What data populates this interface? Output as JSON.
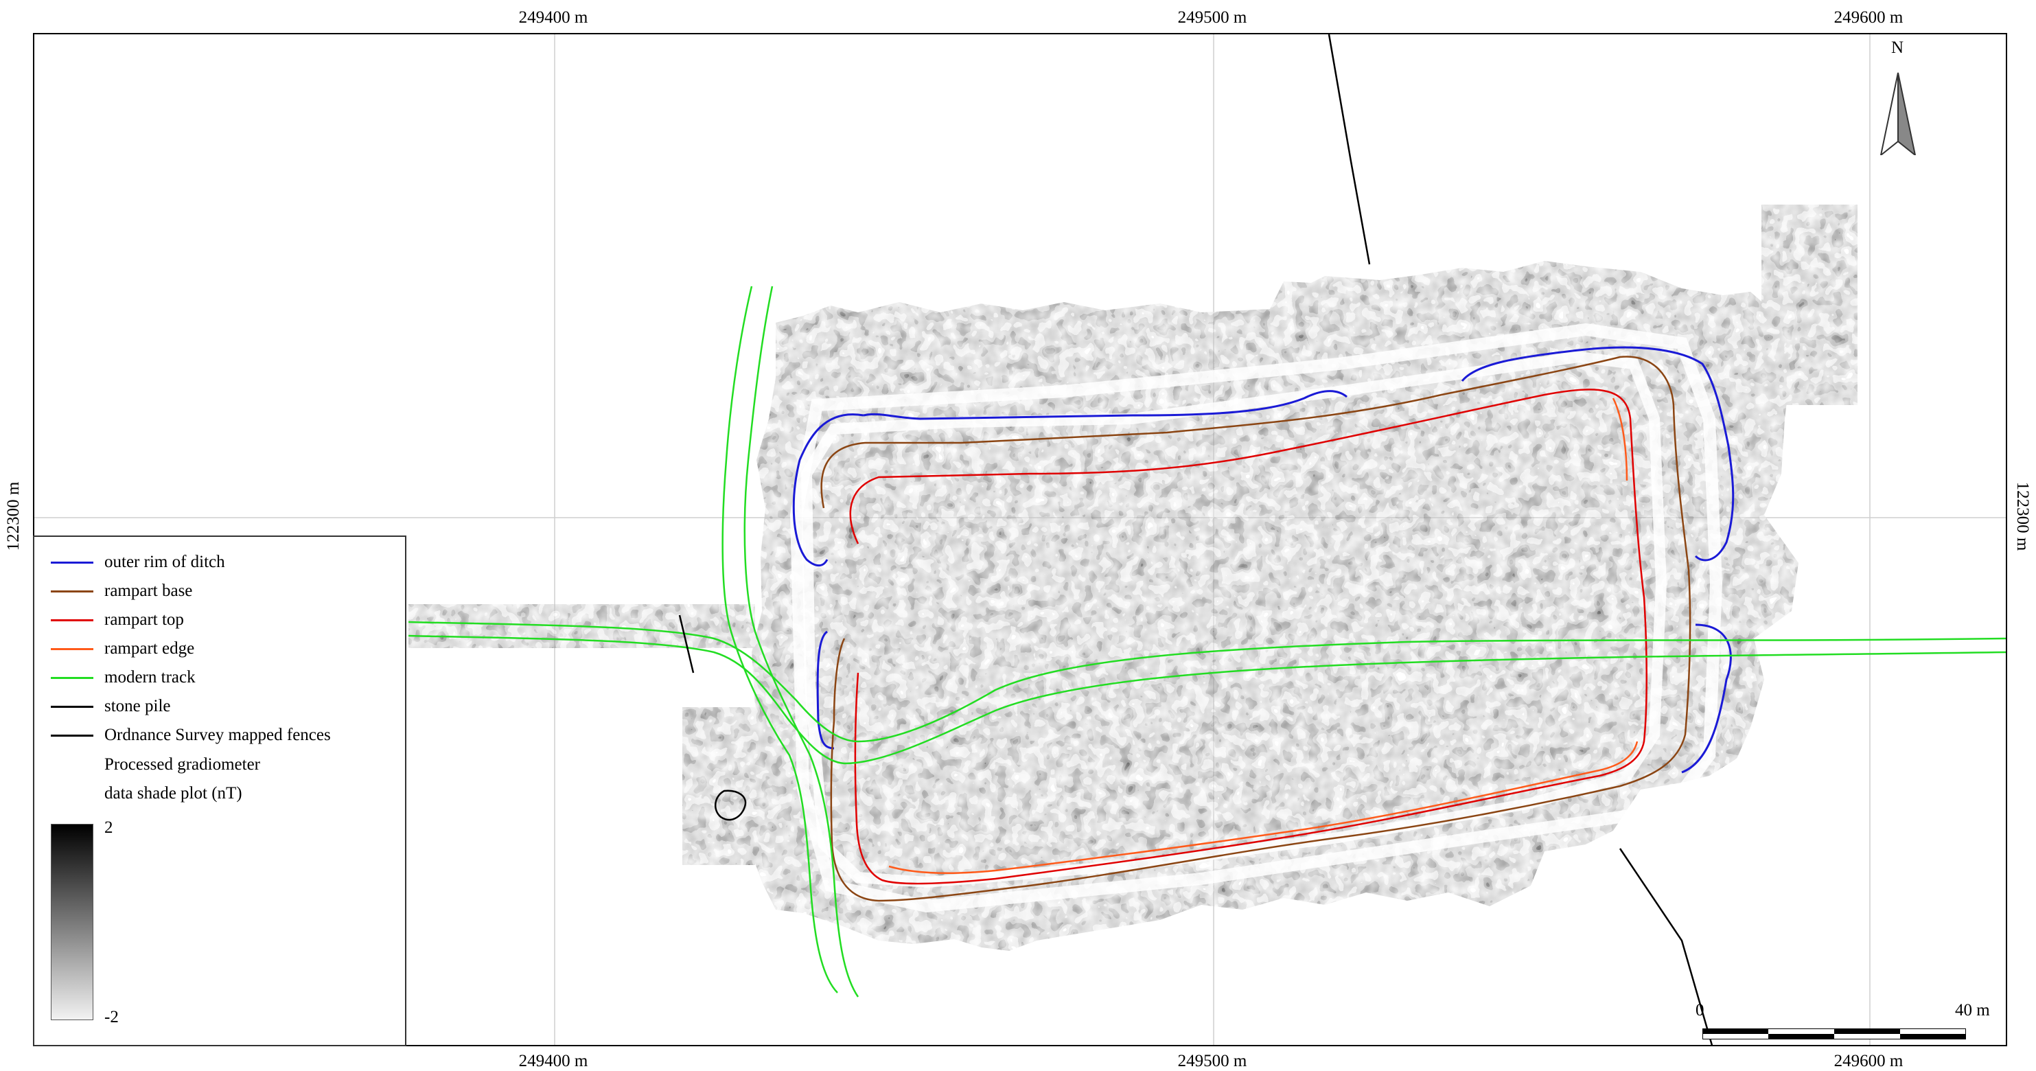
{
  "axes": {
    "top": [
      "249400 m",
      "249500 m",
      "249600 m"
    ],
    "bottom": [
      "249400 m",
      "249500 m",
      "249600 m"
    ],
    "left": "122300 m",
    "right": "122300 m"
  },
  "legend": {
    "items": [
      {
        "label": "outer rim of ditch",
        "color": "#1a1ad6"
      },
      {
        "label": "rampart base",
        "color": "#8b4513"
      },
      {
        "label": "rampart top",
        "color": "#e00000"
      },
      {
        "label": "rampart edge",
        "color": "#ff5a1a"
      },
      {
        "label": "modern track",
        "color": "#22dd22"
      },
      {
        "label": "stone pile",
        "color": "#000000"
      },
      {
        "label": "Ordnance Survey mapped fences",
        "color": "#000000"
      }
    ],
    "raster_title_line1": "Processed gradiometer",
    "raster_title_line2": "data shade plot (nT)",
    "ramp_max": "2",
    "ramp_min": "-2"
  },
  "north_arrow": {
    "label": "N"
  },
  "scale_bar": {
    "start_label": "0",
    "end_label": "40 m"
  },
  "colors": {
    "ditch": "#1a1ad6",
    "rampart_base": "#8b4513",
    "rampart_top": "#e00000",
    "rampart_edge": "#ff5a1a",
    "track": "#22dd22",
    "fence": "#000000",
    "grid": "#cfcfcf"
  }
}
